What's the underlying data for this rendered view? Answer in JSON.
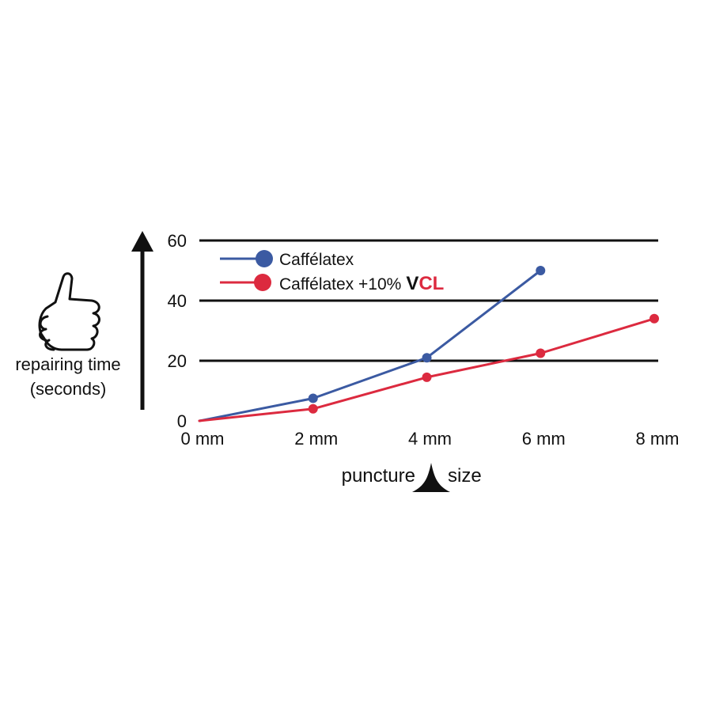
{
  "colors": {
    "axis": "#111111",
    "blue": "#3b5aa2",
    "red": "#dc2a3f",
    "background": "#ffffff"
  },
  "chart_data": {
    "type": "line",
    "title": "",
    "xlabel_left": "puncture",
    "xlabel_right": "size",
    "ylabel_line1": "repairing time",
    "ylabel_line2": "(seconds)",
    "x_ticks": [
      {
        "value": 0,
        "label": "0 mm"
      },
      {
        "value": 2,
        "label": "2 mm"
      },
      {
        "value": 4,
        "label": "4 mm"
      },
      {
        "value": 6,
        "label": "6 mm"
      },
      {
        "value": 8,
        "label": "8 mm"
      }
    ],
    "y_ticks": [
      {
        "value": 0,
        "label": "0"
      },
      {
        "value": 20,
        "label": "20"
      },
      {
        "value": 40,
        "label": "40"
      },
      {
        "value": 60,
        "label": "60"
      }
    ],
    "xlim": [
      0,
      8
    ],
    "ylim": [
      0,
      60
    ],
    "grid": "horizontal",
    "legend_position": "top-left",
    "series": [
      {
        "name": "Caffélatex",
        "color": "#3b5aa2",
        "points": [
          {
            "x": 0,
            "y": 0
          },
          {
            "x": 2,
            "y": 7.5
          },
          {
            "x": 4,
            "y": 21
          },
          {
            "x": 6,
            "y": 50
          }
        ]
      },
      {
        "name": "Caffélatex +10%",
        "name_suffix_v": "V",
        "name_suffix_cl": "CL",
        "color": "#dc2a3f",
        "points": [
          {
            "x": 0,
            "y": 0
          },
          {
            "x": 2,
            "y": 4
          },
          {
            "x": 4,
            "y": 14.5
          },
          {
            "x": 6,
            "y": 22.5
          },
          {
            "x": 8,
            "y": 34
          }
        ]
      }
    ]
  }
}
